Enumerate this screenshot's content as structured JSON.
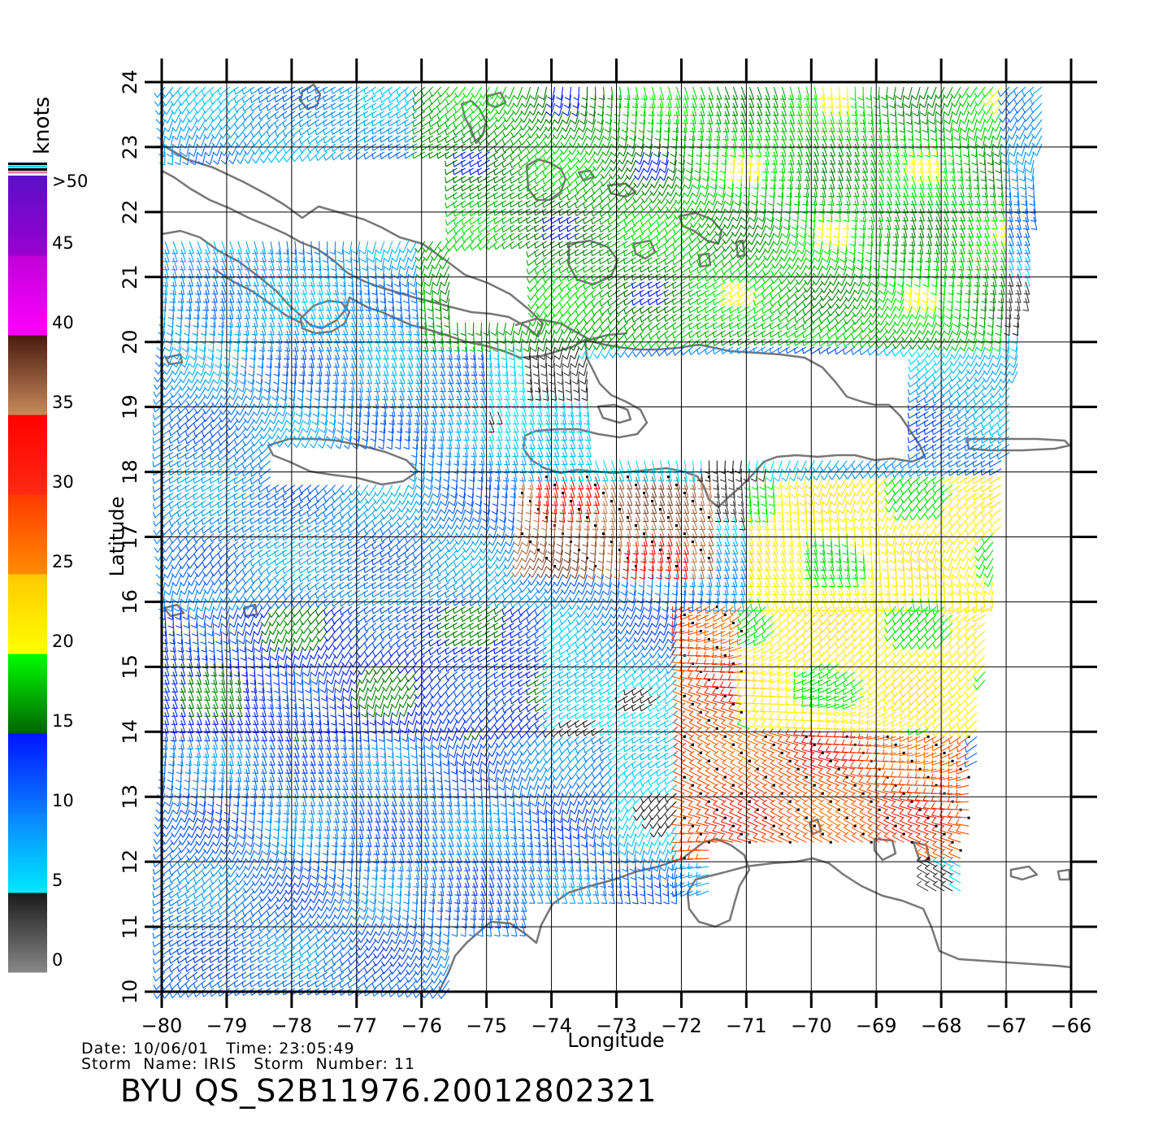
{
  "map": {
    "axes": {
      "xlabel": "Longitude",
      "ylabel": "Latitude",
      "lon_range": [
        -80,
        -66
      ],
      "lat_range": [
        10,
        24
      ],
      "x_ticks": [
        "−80",
        "−79",
        "−78",
        "−77",
        "−76",
        "−75",
        "−74",
        "−73",
        "−72",
        "−71",
        "−70",
        "−69",
        "−68",
        "−67",
        "−66"
      ],
      "y_ticks": [
        "10",
        "11",
        "12",
        "13",
        "14",
        "15",
        "16",
        "17",
        "18",
        "19",
        "20",
        "21",
        "22",
        "23",
        "24"
      ],
      "grid": true
    },
    "colorbar": {
      "unit": "knots",
      "tick_labels": [
        "0",
        "5",
        "10",
        "15",
        "20",
        "25",
        "30",
        "35",
        "40",
        "45",
        ">50"
      ],
      "segments": [
        {
          "from": 0,
          "to": 5,
          "top": "#1a1a1a",
          "bottom": "#888888"
        },
        {
          "from": 5,
          "to": 10,
          "top": "#0a82ff",
          "bottom": "#00e8ff"
        },
        {
          "from": 10,
          "to": 15,
          "top": "#0014ff",
          "bottom": "#0a7dff"
        },
        {
          "from": 15,
          "to": 20,
          "top": "#00ff00",
          "bottom": "#006400"
        },
        {
          "from": 20,
          "to": 25,
          "top": "#ffc800",
          "bottom": "#ffff00"
        },
        {
          "from": 25,
          "to": 30,
          "top": "#ff3a00",
          "bottom": "#ff8c00"
        },
        {
          "from": 30,
          "to": 35,
          "top": "#ff0000",
          "bottom": "#ff2a10"
        },
        {
          "from": 35,
          "to": 40,
          "top": "#4a1a10",
          "bottom": "#c88a5a"
        },
        {
          "from": 40,
          "to": 45,
          "top": "#c000d8",
          "bottom": "#ff00ff"
        },
        {
          "from": 45,
          "to": 50,
          "top": "#5a10c8",
          "bottom": "#9a00d0"
        }
      ],
      "top_stripes": [
        "#000000",
        "#00e0e0",
        "#000000",
        "#e080a0"
      ]
    },
    "colors": {
      "coast": "#777777",
      "grid": "#000000"
    },
    "wind_field": {
      "description_units": "knots",
      "regions": [
        {
          "lat": [
            10,
            14
          ],
          "lon": [
            -80,
            -73
          ],
          "speed": 11
        },
        {
          "lat": [
            14,
            16
          ],
          "lon": [
            -80,
            -74
          ],
          "speed": 14
        },
        {
          "lat": [
            16,
            20
          ],
          "lon": [
            -80,
            -75
          ],
          "speed": 10
        },
        {
          "lat": [
            20,
            24
          ],
          "lon": [
            -80,
            -76
          ],
          "speed": 9
        },
        {
          "lat": [
            20,
            24
          ],
          "lon": [
            -76,
            -72
          ],
          "speed": 17
        },
        {
          "lat": [
            20,
            24
          ],
          "lon": [
            -72,
            -67
          ],
          "speed": 18
        },
        {
          "lat": [
            16.5,
            18
          ],
          "lon": [
            -74.5,
            -71.5
          ],
          "speed": 36
        },
        {
          "lat": [
            12,
            16
          ],
          "lon": [
            -72,
            -67.5
          ],
          "speed": 29
        },
        {
          "lat": [
            14,
            18
          ],
          "lon": [
            -71,
            -67
          ],
          "speed": 21
        }
      ]
    }
  },
  "footer": {
    "line1": "Date: 10/06/01   Time: 23:05:49",
    "line2": "Storm  Name: IRIS   Storm  Number: 11",
    "product": "BYU  QS_S2B11976.20012802321"
  }
}
